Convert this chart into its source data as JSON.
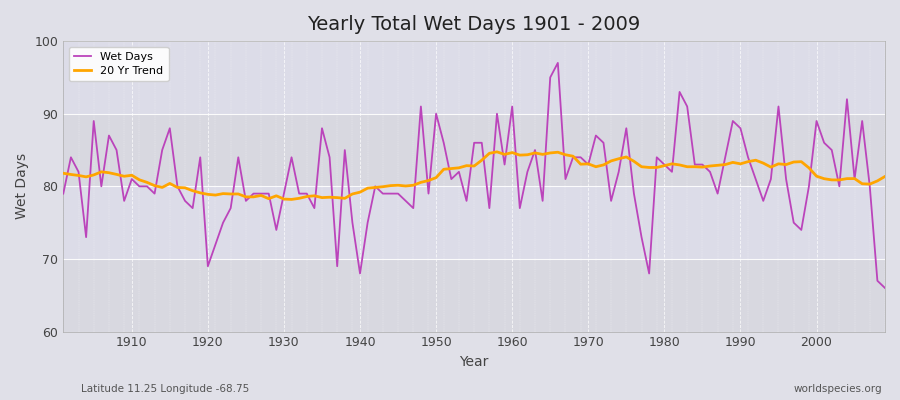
{
  "title": "Yearly Total Wet Days 1901 - 2009",
  "xlabel": "Year",
  "ylabel": "Wet Days",
  "subtitle_left": "Latitude 11.25 Longitude -68.75",
  "subtitle_right": "worldspecies.org",
  "ylim": [
    60,
    100
  ],
  "xlim": [
    1901,
    2009
  ],
  "yticks": [
    60,
    70,
    80,
    90,
    100
  ],
  "xticks": [
    1910,
    1920,
    1930,
    1940,
    1950,
    1960,
    1970,
    1980,
    1990,
    2000
  ],
  "wet_days_color": "#BB44BB",
  "trend_color": "#FFA500",
  "background_color": "#E0E0E8",
  "plot_bg_color": "#DCDCE4",
  "grid_color": "#FFFFFF",
  "years": [
    1901,
    1902,
    1903,
    1904,
    1905,
    1906,
    1907,
    1908,
    1909,
    1910,
    1911,
    1912,
    1913,
    1914,
    1915,
    1916,
    1917,
    1918,
    1919,
    1920,
    1921,
    1922,
    1923,
    1924,
    1925,
    1926,
    1927,
    1928,
    1929,
    1930,
    1931,
    1932,
    1933,
    1934,
    1935,
    1936,
    1937,
    1938,
    1939,
    1940,
    1941,
    1942,
    1943,
    1944,
    1945,
    1946,
    1947,
    1948,
    1949,
    1950,
    1951,
    1952,
    1953,
    1954,
    1955,
    1956,
    1957,
    1958,
    1959,
    1960,
    1961,
    1962,
    1963,
    1964,
    1965,
    1966,
    1967,
    1968,
    1969,
    1970,
    1971,
    1972,
    1973,
    1974,
    1975,
    1976,
    1977,
    1978,
    1979,
    1980,
    1981,
    1982,
    1983,
    1984,
    1985,
    1986,
    1987,
    1988,
    1989,
    1990,
    1991,
    1992,
    1993,
    1994,
    1995,
    1996,
    1997,
    1998,
    1999,
    2000,
    2001,
    2002,
    2003,
    2004,
    2005,
    2006,
    2007,
    2008,
    2009
  ],
  "wet_days": [
    79,
    84,
    82,
    73,
    89,
    80,
    87,
    85,
    78,
    81,
    80,
    80,
    79,
    85,
    88,
    80,
    78,
    77,
    84,
    69,
    72,
    75,
    77,
    84,
    78,
    79,
    79,
    79,
    74,
    79,
    84,
    79,
    79,
    77,
    88,
    84,
    69,
    85,
    75,
    68,
    75,
    80,
    79,
    79,
    79,
    78,
    77,
    91,
    79,
    90,
    86,
    81,
    82,
    78,
    86,
    86,
    77,
    90,
    83,
    91,
    77,
    82,
    85,
    78,
    95,
    97,
    81,
    84,
    84,
    83,
    87,
    86,
    78,
    82,
    88,
    79,
    73,
    68,
    84,
    83,
    82,
    93,
    91,
    83,
    83,
    82,
    79,
    84,
    89,
    88,
    84,
    81,
    78,
    81,
    91,
    81,
    75,
    74,
    80,
    89,
    86,
    85,
    80,
    92,
    81,
    89,
    80,
    67,
    66
  ]
}
